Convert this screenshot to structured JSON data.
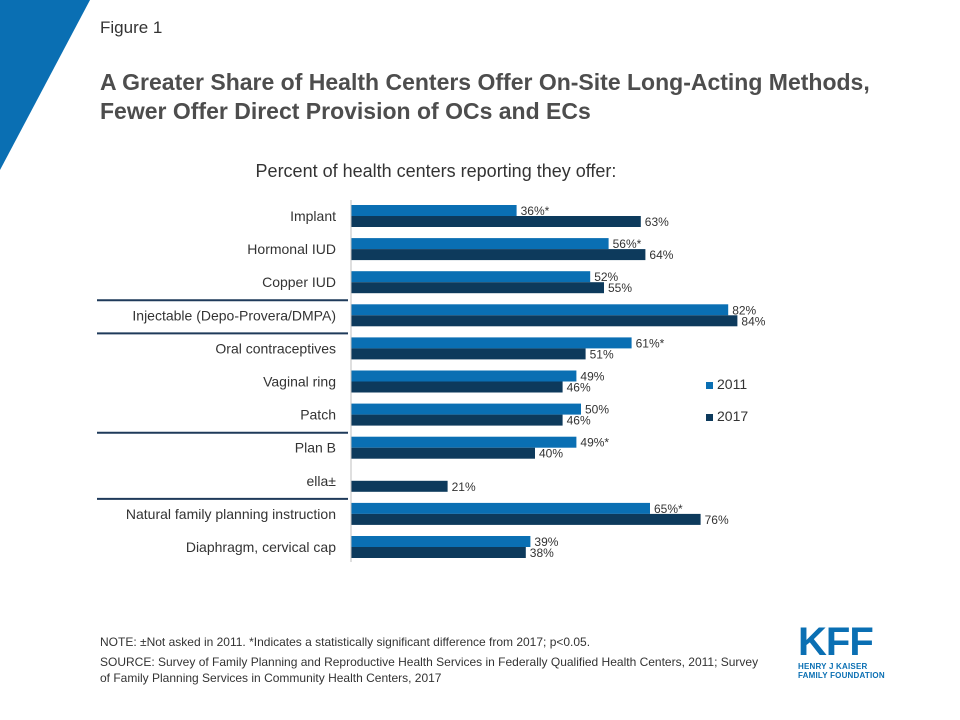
{
  "header": {
    "figure_label": "Figure 1",
    "title": "A Greater Share of Health Centers Offer On-Site Long-Acting Methods, Fewer Offer Direct Provision of OCs and ECs"
  },
  "chart_data": {
    "type": "bar",
    "orientation": "horizontal",
    "subtitle": "Percent of health centers reporting they offer:",
    "categories": [
      "Implant",
      "Hormonal IUD",
      "Copper IUD",
      "Injectable (Depo-Provera/DMPA)",
      "Oral contraceptives",
      "Vaginal ring",
      "Patch",
      "Plan B",
      "ella±",
      "Natural family planning instruction",
      "Diaphragm, cervical cap"
    ],
    "series": [
      {
        "name": "2011",
        "color": "#0a6fb3",
        "values": [
          36,
          56,
          52,
          82,
          61,
          49,
          50,
          49,
          null,
          65,
          39
        ],
        "labels": [
          "36%*",
          "56%*",
          "52%",
          "82%",
          "61%*",
          "49%",
          "50%",
          "49%*",
          "",
          "65%*",
          "39%"
        ]
      },
      {
        "name": "2017",
        "color": "#0d3a5c",
        "values": [
          63,
          64,
          55,
          84,
          51,
          46,
          46,
          40,
          21,
          76,
          38
        ],
        "labels": [
          "63%",
          "64%",
          "55%",
          "84%",
          "51%",
          "46%",
          "46%",
          "40%",
          "21%",
          "76%",
          "38%"
        ]
      }
    ],
    "group_separators_after": [
      "Copper IUD",
      "Injectable (Depo-Provera/DMPA)",
      "Patch",
      "ella±"
    ],
    "xlim": [
      0,
      100
    ],
    "legend_position": "right",
    "grid": false
  },
  "footer": {
    "note": "NOTE: ±Not asked in 2011. *Indicates a statistically significant difference from 2017; p<0.05.",
    "source": "SOURCE:  Survey of Family Planning and Reproductive Health Services in Federally Qualified Health Centers, 2011; Survey of Family Planning Services in Community Health Centers, 2017"
  },
  "logo": {
    "mark": "KFF",
    "line1": "HENRY J KAISER",
    "line2": "FAMILY FOUNDATION"
  }
}
